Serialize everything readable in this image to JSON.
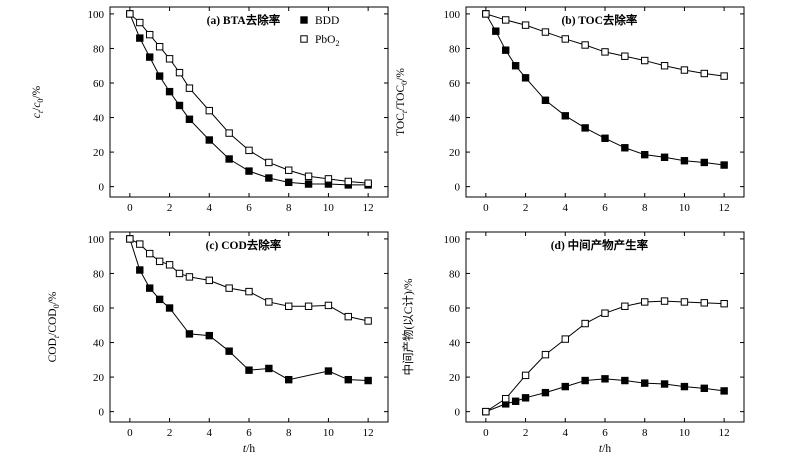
{
  "chart_data": [
    {
      "type": "line",
      "title": "(a) BTA去除率",
      "xlabel": "",
      "ylabel_parts": {
        "main1": "c",
        "sub1": "t",
        "main2": "/c",
        "sub2": "0",
        "main3": "/%"
      },
      "xlim": [
        -1,
        13
      ],
      "ylim": [
        -6,
        104
      ],
      "xticks": [
        0,
        2,
        4,
        6,
        8,
        10,
        12
      ],
      "yticks": [
        0,
        20,
        40,
        60,
        80,
        100
      ],
      "legend": {
        "placement": "top-right",
        "items": [
          {
            "label": "BDD"
          },
          {
            "label_main": "PbO",
            "label_sub": "2"
          }
        ]
      },
      "series": [
        {
          "name": "BDD",
          "marker": "filled-square",
          "x": [
            0,
            0.5,
            1,
            1.5,
            2,
            2.5,
            3,
            4,
            5,
            6,
            7,
            8,
            9,
            10,
            11,
            12
          ],
          "y": [
            100,
            86,
            75,
            64,
            55,
            47,
            39,
            27,
            16,
            9,
            5,
            2.5,
            1.5,
            1.5,
            1,
            1
          ]
        },
        {
          "name": "PbO2",
          "marker": "open-square",
          "x": [
            0,
            0.5,
            1,
            1.5,
            2,
            2.5,
            3,
            4,
            5,
            6,
            7,
            8,
            9,
            10,
            11,
            12
          ],
          "y": [
            100,
            95,
            88,
            81,
            74,
            66,
            57,
            44,
            31,
            21,
            14,
            9.5,
            6,
            4.5,
            3,
            2
          ]
        }
      ]
    },
    {
      "type": "line",
      "title": "(b) TOC去除率",
      "xlabel": "",
      "ylabel_parts": {
        "main1": "TOC",
        "sub1": "t",
        "main2": "/TOC",
        "sub2": "0",
        "main3": "/%"
      },
      "xlim": [
        -1,
        13
      ],
      "ylim": [
        -6,
        104
      ],
      "xticks": [
        0,
        2,
        4,
        6,
        8,
        10,
        12
      ],
      "yticks": [
        0,
        20,
        40,
        60,
        80,
        100
      ],
      "series": [
        {
          "name": "BDD",
          "marker": "filled-square",
          "x": [
            0,
            0.5,
            1,
            1.5,
            2,
            3,
            4,
            5,
            6,
            7,
            8,
            9,
            10,
            11,
            12
          ],
          "y": [
            100,
            90,
            79,
            70,
            63,
            50,
            41,
            34,
            28,
            22.5,
            18.5,
            17,
            15,
            14,
            12.5
          ]
        },
        {
          "name": "PbO2",
          "marker": "open-square",
          "x": [
            0,
            1,
            2,
            3,
            4,
            5,
            6,
            7,
            8,
            9,
            10,
            11,
            12
          ],
          "y": [
            100,
            96.5,
            93.5,
            89.5,
            85.5,
            82,
            78,
            75.5,
            73,
            70,
            67.5,
            65.5,
            64
          ]
        }
      ]
    },
    {
      "type": "line",
      "title": "(c) COD去除率",
      "xlabel": "t/h",
      "ylabel_parts": {
        "main1": "COD",
        "sub1": "t",
        "main2": "/COD",
        "sub2": "0",
        "main3": "/%"
      },
      "xlim": [
        -1,
        13
      ],
      "ylim": [
        -6,
        104
      ],
      "xticks": [
        0,
        2,
        4,
        6,
        8,
        10,
        12
      ],
      "yticks": [
        0,
        20,
        40,
        60,
        80,
        100
      ],
      "series": [
        {
          "name": "BDD",
          "marker": "filled-square",
          "x": [
            0,
            0.5,
            1,
            1.5,
            2,
            3,
            4,
            5,
            6,
            7,
            8,
            10,
            11,
            12
          ],
          "y": [
            100,
            82,
            71.5,
            65,
            60,
            45,
            44,
            35,
            24,
            25,
            18.5,
            23.5,
            18.5,
            18
          ]
        },
        {
          "name": "PbO2",
          "marker": "open-square",
          "x": [
            0,
            0.5,
            1,
            1.5,
            2,
            2.5,
            3,
            4,
            5,
            6,
            7,
            8,
            9,
            10,
            11,
            12
          ],
          "y": [
            100,
            97,
            91.5,
            87,
            85,
            80,
            78,
            76,
            71.5,
            69.5,
            63.5,
            61,
            61,
            61.5,
            55,
            52.5
          ]
        }
      ]
    },
    {
      "type": "line",
      "title": "(d) 中间产物产生率",
      "xlabel": "t/h",
      "ylabel_parts": {
        "main1": "中间产物(以C计)/%"
      },
      "xlim": [
        -1,
        13
      ],
      "ylim": [
        -6,
        104
      ],
      "xticks": [
        0,
        2,
        4,
        6,
        8,
        10,
        12
      ],
      "yticks": [
        0,
        20,
        40,
        60,
        80,
        100
      ],
      "series": [
        {
          "name": "BDD",
          "marker": "filled-square",
          "x": [
            0,
            1,
            1.5,
            2,
            3,
            4,
            5,
            6,
            7,
            8,
            9,
            10,
            11,
            12
          ],
          "y": [
            0,
            4.5,
            6,
            8,
            11,
            14.5,
            18,
            19,
            18,
            16.5,
            16,
            14.5,
            13.5,
            12
          ]
        },
        {
          "name": "PbO2",
          "marker": "open-square",
          "x": [
            0,
            1,
            2,
            3,
            4,
            5,
            6,
            7,
            8,
            9,
            10,
            11,
            12
          ],
          "y": [
            0,
            7.5,
            21,
            33,
            42,
            51,
            57,
            61,
            63.5,
            64,
            63.5,
            63,
            62.5
          ]
        }
      ]
    }
  ]
}
